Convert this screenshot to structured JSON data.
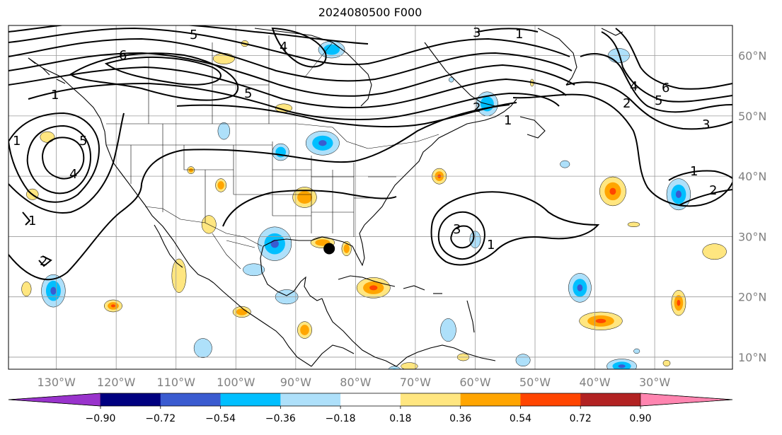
{
  "title": "2024080500 F000",
  "map": {
    "lon_range": [
      -138,
      -17
    ],
    "lat_range": [
      8,
      65
    ],
    "lat_labels": [
      {
        "lat": 60,
        "text": "60°N"
      },
      {
        "lat": 50,
        "text": "50°N"
      },
      {
        "lat": 40,
        "text": "40°N"
      },
      {
        "lat": 30,
        "text": "30°N"
      },
      {
        "lat": 20,
        "text": "20°N"
      },
      {
        "lat": 10,
        "text": "10°N"
      }
    ],
    "lon_labels": [
      {
        "lon": -130,
        "text": "130°W"
      },
      {
        "lon": -120,
        "text": "120°W"
      },
      {
        "lon": -110,
        "text": "110°W"
      },
      {
        "lon": -100,
        "text": "100°W"
      },
      {
        "lon": -90,
        "text": "90°W"
      },
      {
        "lon": -80,
        "text": "80°W"
      },
      {
        "lon": -70,
        "text": "70°W"
      },
      {
        "lon": -60,
        "text": "60°W"
      },
      {
        "lon": -50,
        "text": "50°W"
      },
      {
        "lon": -40,
        "text": "40°W"
      },
      {
        "lon": -30,
        "text": "30°W"
      }
    ],
    "grid": true,
    "marker": {
      "lon": -84.4,
      "lat": 28.0,
      "color": "#000000"
    }
  },
  "colorbar": {
    "colors": [
      "#9933cc",
      "#000080",
      "#3a5bd0",
      "#00bfff",
      "#aee0fa",
      "#ffffff",
      "#ffe680",
      "#ffa500",
      "#ff4500",
      "#b22222",
      "#ff85b0"
    ],
    "labels": [
      "−0.90",
      "−0.72",
      "−0.54",
      "−0.36",
      "−0.18",
      "0.18",
      "0.36",
      "0.54",
      "0.72",
      "0.90"
    ]
  },
  "contour_labels": [
    {
      "text": "5"
    },
    {
      "text": "6"
    },
    {
      "text": "5"
    },
    {
      "text": "4"
    },
    {
      "text": "3"
    },
    {
      "text": "1"
    },
    {
      "text": "2"
    },
    {
      "text": "1"
    },
    {
      "text": "1"
    },
    {
      "text": "5"
    },
    {
      "text": "4"
    },
    {
      "text": "1"
    },
    {
      "text": "2"
    },
    {
      "text": "3"
    },
    {
      "text": "1"
    },
    {
      "text": "6"
    },
    {
      "text": "5"
    },
    {
      "text": "4"
    },
    {
      "text": "2"
    },
    {
      "text": "3"
    },
    {
      "text": "1"
    },
    {
      "text": "2"
    },
    {
      "text": "1"
    }
  ],
  "shading": {
    "positive_blobs": [
      {
        "lon": -102,
        "lat": 59.5,
        "rx": 1.8,
        "ry": 0.9,
        "level": 1
      },
      {
        "lon": -98.5,
        "lat": 62.0,
        "rx": 0.6,
        "ry": 0.5,
        "level": 1
      },
      {
        "lon": -92,
        "lat": 51.3,
        "rx": 1.4,
        "ry": 0.7,
        "level": 1
      },
      {
        "lon": -131.5,
        "lat": 46.5,
        "rx": 1.2,
        "ry": 0.9,
        "level": 1
      },
      {
        "lon": -107.5,
        "lat": 41.0,
        "rx": 0.6,
        "ry": 0.6,
        "level": 2
      },
      {
        "lon": -102.5,
        "lat": 38.5,
        "rx": 0.9,
        "ry": 1.1,
        "level": 2
      },
      {
        "lon": -134,
        "lat": 37.0,
        "rx": 1.0,
        "ry": 0.9,
        "level": 1
      },
      {
        "lon": -88.5,
        "lat": 36.5,
        "rx": 2.0,
        "ry": 1.7,
        "level": 2
      },
      {
        "lon": -66,
        "lat": 40.0,
        "rx": 1.2,
        "ry": 1.3,
        "level": 3
      },
      {
        "lon": -104.5,
        "lat": 32.0,
        "rx": 1.2,
        "ry": 1.5,
        "level": 1
      },
      {
        "lon": -85.5,
        "lat": 29.0,
        "rx": 2.0,
        "ry": 0.9,
        "level": 2
      },
      {
        "lon": -81.5,
        "lat": 28.0,
        "rx": 0.8,
        "ry": 1.2,
        "level": 2
      },
      {
        "lon": -77,
        "lat": 21.5,
        "rx": 2.8,
        "ry": 1.7,
        "level": 3
      },
      {
        "lon": -109.5,
        "lat": 23.5,
        "rx": 1.2,
        "ry": 2.8,
        "level": 1
      },
      {
        "lon": -135,
        "lat": 21.3,
        "rx": 0.8,
        "ry": 1.2,
        "level": 1
      },
      {
        "lon": -120.5,
        "lat": 18.5,
        "rx": 1.5,
        "ry": 1.0,
        "level": 3
      },
      {
        "lon": -99,
        "lat": 17.5,
        "rx": 1.5,
        "ry": 0.9,
        "level": 2
      },
      {
        "lon": -88.5,
        "lat": 14.5,
        "rx": 1.2,
        "ry": 1.4,
        "level": 2
      },
      {
        "lon": -39,
        "lat": 16.0,
        "rx": 3.6,
        "ry": 1.5,
        "level": 3
      },
      {
        "lon": -26,
        "lat": 19.0,
        "rx": 1.2,
        "ry": 2.1,
        "level": 3
      },
      {
        "lon": -37,
        "lat": 37.5,
        "rx": 2.2,
        "ry": 2.4,
        "level": 3
      },
      {
        "lon": -20,
        "lat": 27.5,
        "rx": 2.0,
        "ry": 1.3,
        "level": 1
      },
      {
        "lon": -33.5,
        "lat": 32.0,
        "rx": 1.0,
        "ry": 0.4,
        "level": 1
      },
      {
        "lon": -62,
        "lat": 10.0,
        "rx": 1.0,
        "ry": 0.6,
        "level": 1
      },
      {
        "lon": -71,
        "lat": 8.5,
        "rx": 1.4,
        "ry": 0.6,
        "level": 1
      },
      {
        "lon": -50.5,
        "lat": 55.5,
        "rx": 0.3,
        "ry": 0.6,
        "level": 1
      },
      {
        "lon": -28,
        "lat": 9.0,
        "rx": 0.6,
        "ry": 0.5,
        "level": 1
      }
    ],
    "negative_blobs": [
      {
        "lon": -84,
        "lat": 61.0,
        "rx": 2.2,
        "ry": 1.4,
        "level": 2
      },
      {
        "lon": -36,
        "lat": 60.0,
        "rx": 1.8,
        "ry": 1.2,
        "level": 1
      },
      {
        "lon": -58,
        "lat": 52.0,
        "rx": 1.8,
        "ry": 2.0,
        "level": 2
      },
      {
        "lon": -85.5,
        "lat": 45.5,
        "rx": 2.8,
        "ry": 2.0,
        "level": 3
      },
      {
        "lon": -92.5,
        "lat": 44.0,
        "rx": 1.4,
        "ry": 1.4,
        "level": 2
      },
      {
        "lon": -102,
        "lat": 47.5,
        "rx": 1.0,
        "ry": 1.4,
        "level": 1
      },
      {
        "lon": -93.5,
        "lat": 28.8,
        "rx": 2.8,
        "ry": 2.8,
        "level": 3
      },
      {
        "lon": -130.5,
        "lat": 21.0,
        "rx": 2.0,
        "ry": 2.7,
        "level": 3
      },
      {
        "lon": -97,
        "lat": 24.5,
        "rx": 1.8,
        "ry": 1.0,
        "level": 1
      },
      {
        "lon": -91.5,
        "lat": 20.0,
        "rx": 1.9,
        "ry": 1.2,
        "level": 1
      },
      {
        "lon": -105.5,
        "lat": 11.5,
        "rx": 1.5,
        "ry": 1.6,
        "level": 1
      },
      {
        "lon": -26,
        "lat": 37.0,
        "rx": 2.0,
        "ry": 2.6,
        "level": 3
      },
      {
        "lon": -42.5,
        "lat": 21.5,
        "rx": 1.9,
        "ry": 2.4,
        "level": 3
      },
      {
        "lon": -64.5,
        "lat": 14.5,
        "rx": 1.3,
        "ry": 1.9,
        "level": 1
      },
      {
        "lon": -60,
        "lat": 29.5,
        "rx": 0.9,
        "ry": 1.4,
        "level": 1
      },
      {
        "lon": -73.5,
        "lat": 7.5,
        "rx": 1.2,
        "ry": 1.0,
        "level": 3
      },
      {
        "lon": -35.5,
        "lat": 8.5,
        "rx": 2.5,
        "ry": 1.2,
        "level": 3
      },
      {
        "lon": -52,
        "lat": 9.5,
        "rx": 1.2,
        "ry": 1.0,
        "level": 1
      },
      {
        "lon": -45,
        "lat": 42.0,
        "rx": 0.8,
        "ry": 0.6,
        "level": 1
      },
      {
        "lon": -64,
        "lat": 56.0,
        "rx": 0.4,
        "ry": 0.4,
        "level": 1
      },
      {
        "lon": -33,
        "lat": 11.0,
        "rx": 0.5,
        "ry": 0.4,
        "level": 1
      }
    ]
  }
}
